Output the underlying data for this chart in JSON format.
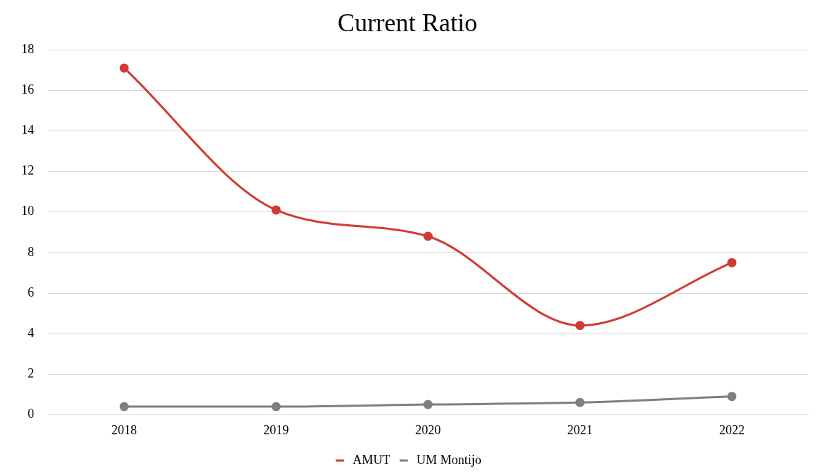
{
  "chart_data": {
    "type": "line",
    "title": "Current Ratio",
    "categories": [
      "2018",
      "2019",
      "2020",
      "2021",
      "2022"
    ],
    "series": [
      {
        "name": "AMUT",
        "color": "#d13b36",
        "values": [
          17.1,
          10.1,
          8.8,
          4.4,
          7.5
        ]
      },
      {
        "name": "UM Montijo",
        "color": "#7f7f7f",
        "values": [
          0.4,
          0.4,
          0.5,
          0.6,
          0.9
        ]
      }
    ],
    "ylim": [
      0,
      18
    ],
    "yticks": [
      0,
      2,
      4,
      6,
      8,
      10,
      12,
      14,
      16,
      18
    ],
    "grid": "y",
    "legend": "bottom",
    "marker": "circle",
    "line_style": "solid"
  }
}
